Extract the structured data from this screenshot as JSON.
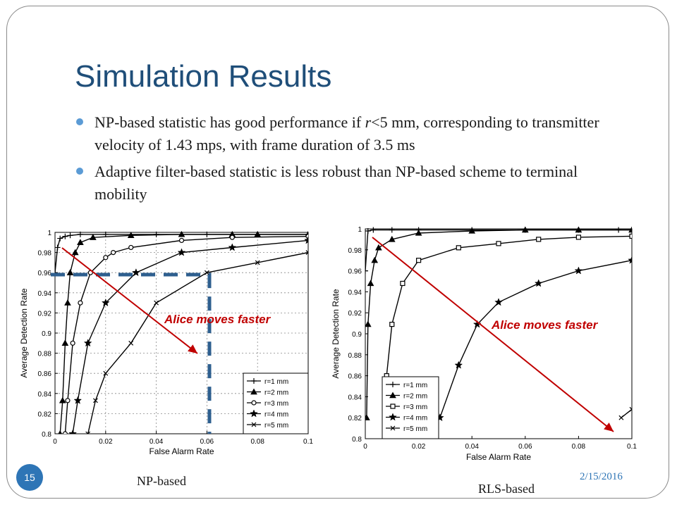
{
  "slide": {
    "title": "Simulation Results",
    "bullets": [
      {
        "pre": "NP-based statistic has good performance if ",
        "var": "r",
        "post": "<5 mm, corresponding to transmitter velocity of 1.43 mps, with frame duration of 3.5 ms"
      },
      {
        "pre": "Adaptive filter-based statistic is less robust than NP-based scheme to terminal mobility",
        "var": "",
        "post": ""
      }
    ],
    "page_number": "15",
    "date": "2/15/2016",
    "captions": [
      "NP-based",
      "RLS-based"
    ]
  },
  "colors": {
    "title": "#1f4e79",
    "bullet_dot": "#5b9bd5",
    "accent": "#2e75b6",
    "arrow": "#c00000",
    "dashed_guide": "#2e5f8f",
    "curve": "#000000"
  },
  "chart_data": [
    {
      "type": "line",
      "xlabel": "False Alarm Rate",
      "ylabel": "Average Detection Rate",
      "xlim": [
        0,
        0.1
      ],
      "ylim": [
        0.8,
        1
      ],
      "xticks": [
        "0",
        "0.02",
        "0.04",
        "0.06",
        "0.08",
        "0.1"
      ],
      "yticks": [
        "0.8",
        "0.82",
        "0.84",
        "0.86",
        "0.88",
        "0.9",
        "0.92",
        "0.94",
        "0.96",
        "0.98",
        "1"
      ],
      "grid": true,
      "legend_position": "bottom-right",
      "series": [
        {
          "name": "r=1 mm",
          "marker": "plus",
          "x": [
            0,
            0.001,
            0.002,
            0.004,
            0.006,
            0.01,
            0.02,
            0.04,
            0.06,
            0.08,
            0.1
          ],
          "y": [
            0.96,
            0.985,
            0.994,
            0.996,
            0.997,
            0.998,
            0.998,
            0.998,
            0.998,
            0.998,
            0.998
          ]
        },
        {
          "name": "r=2 mm",
          "marker": "triangle",
          "x": [
            0.002,
            0.003,
            0.004,
            0.005,
            0.006,
            0.008,
            0.01,
            0.015,
            0.03,
            0.05,
            0.07,
            0.08,
            0.1
          ],
          "y": [
            0.8,
            0.833,
            0.89,
            0.93,
            0.96,
            0.98,
            0.99,
            0.995,
            0.997,
            0.998,
            0.998,
            0.998,
            0.998
          ]
        },
        {
          "name": "r=3 mm",
          "marker": "circle",
          "x": [
            0.004,
            0.005,
            0.007,
            0.01,
            0.014,
            0.02,
            0.023,
            0.03,
            0.05,
            0.07,
            0.1
          ],
          "y": [
            0.8,
            0.833,
            0.89,
            0.93,
            0.96,
            0.975,
            0.98,
            0.985,
            0.992,
            0.995,
            0.996
          ]
        },
        {
          "name": "r=4 mm",
          "marker": "star",
          "x": [
            0.007,
            0.009,
            0.013,
            0.02,
            0.032,
            0.05,
            0.07,
            0.1
          ],
          "y": [
            0.8,
            0.833,
            0.89,
            0.93,
            0.96,
            0.98,
            0.985,
            0.992
          ]
        },
        {
          "name": "r=5 mm",
          "marker": "x",
          "x": [
            0.013,
            0.016,
            0.02,
            0.03,
            0.04,
            0.06,
            0.08,
            0.1
          ],
          "y": [
            0.8,
            0.833,
            0.86,
            0.89,
            0.93,
            0.96,
            0.97,
            0.98
          ]
        }
      ],
      "annotation": "Alice moves faster",
      "guide_lines": {
        "y": 0.958,
        "x": 0.061
      }
    },
    {
      "type": "line",
      "xlabel": "False Alarm Rate",
      "ylabel": "Average Detection Rate",
      "xlim": [
        0,
        0.1
      ],
      "ylim": [
        0.8,
        1
      ],
      "xticks": [
        "0",
        "0.02",
        "0.04",
        "0.06",
        "0.08",
        "0.1"
      ],
      "yticks": [
        "0.8",
        "0.82",
        "0.84",
        "0.86",
        "0.88",
        "0.9",
        "0.92",
        "0.94",
        "0.96",
        "0.98",
        "1"
      ],
      "grid": false,
      "legend_position": "bottom-left",
      "series": [
        {
          "name": "r=1 mm",
          "marker": "plus",
          "x": [
            0,
            0.001,
            0.003,
            0.01,
            0.02,
            0.04,
            0.06,
            0.08,
            0.095,
            0.1
          ],
          "y": [
            0.96,
            0.998,
            0.999,
            0.999,
            0.999,
            0.999,
            0.999,
            0.999,
            0.999,
            0.999
          ]
        },
        {
          "name": "r=2 mm",
          "marker": "triangle",
          "x": [
            0.0005,
            0.001,
            0.002,
            0.0035,
            0.005,
            0.01,
            0.02,
            0.04,
            0.06,
            0.08,
            0.1
          ],
          "y": [
            0.82,
            0.909,
            0.948,
            0.97,
            0.982,
            0.99,
            0.996,
            0.998,
            0.999,
            0.999,
            0.999
          ]
        },
        {
          "name": "r=3 mm",
          "marker": "square",
          "x": [
            0.008,
            0.01,
            0.014,
            0.02,
            0.035,
            0.05,
            0.065,
            0.08,
            0.1
          ],
          "y": [
            0.86,
            0.909,
            0.948,
            0.97,
            0.982,
            0.986,
            0.99,
            0.992,
            0.993
          ]
        },
        {
          "name": "r=4 mm",
          "marker": "star",
          "x": [
            0.028,
            0.035,
            0.042,
            0.05,
            0.065,
            0.08,
            0.1
          ],
          "y": [
            0.82,
            0.87,
            0.909,
            0.93,
            0.948,
            0.96,
            0.97
          ]
        },
        {
          "name": "r=5 mm",
          "marker": "x",
          "x": [
            0.096,
            0.1
          ],
          "y": [
            0.82,
            0.828
          ]
        }
      ],
      "annotation": "Alice moves faster"
    }
  ]
}
